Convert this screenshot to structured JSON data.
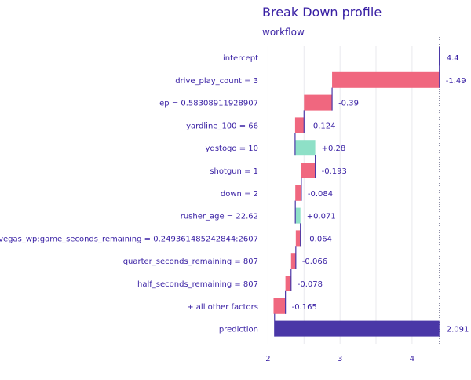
{
  "chart_data": {
    "type": "bar",
    "subtype": "waterfall",
    "title": "Break Down profile",
    "subtitle": "workflow",
    "xlim": [
      1.93,
      4.47
    ],
    "x_ticks": [
      2,
      3,
      4
    ],
    "x_tick_labels": [
      "2",
      "3",
      "4"
    ],
    "grid": true,
    "colors": {
      "negative": "#f0677f",
      "positive": "#8ee0c7",
      "baseline": "#4a37a7",
      "text": "#371ea3",
      "grid": "#e9e9ee"
    },
    "rows": [
      {
        "label": "intercept",
        "kind": "baseline",
        "start": 4.38,
        "end": 4.38,
        "value_label": "4.4"
      },
      {
        "label": "drive_play_count = 3",
        "kind": "negative",
        "start": 4.38,
        "end": 2.89,
        "value_label": "-1.49"
      },
      {
        "label": "ep = 0.58308911928907",
        "kind": "negative",
        "start": 2.89,
        "end": 2.5,
        "value_label": "-0.39"
      },
      {
        "label": "yardline_100 = 66",
        "kind": "negative",
        "start": 2.5,
        "end": 2.376,
        "value_label": "-0.124"
      },
      {
        "label": "ydstogo = 10",
        "kind": "positive",
        "start": 2.376,
        "end": 2.656,
        "value_label": "+0.28"
      },
      {
        "label": "shotgun = 1",
        "kind": "negative",
        "start": 2.656,
        "end": 2.463,
        "value_label": "-0.193"
      },
      {
        "label": "down = 2",
        "kind": "negative",
        "start": 2.463,
        "end": 2.379,
        "value_label": "-0.084"
      },
      {
        "label": "rusher_age = 22.62",
        "kind": "positive",
        "start": 2.379,
        "end": 2.45,
        "value_label": "+0.071"
      },
      {
        "label": "vegas_wp:game_seconds_remaining = 0.249361485242844:2607",
        "kind": "negative",
        "start": 2.45,
        "end": 2.386,
        "value_label": "-0.064"
      },
      {
        "label": "quarter_seconds_remaining = 807",
        "kind": "negative",
        "start": 2.386,
        "end": 2.32,
        "value_label": "-0.066"
      },
      {
        "label": "half_seconds_remaining = 807",
        "kind": "negative",
        "start": 2.32,
        "end": 2.242,
        "value_label": "-0.078"
      },
      {
        "label": "+ all other factors",
        "kind": "negative",
        "start": 2.242,
        "end": 2.077,
        "value_label": "-0.165"
      },
      {
        "label": "prediction",
        "kind": "prediction",
        "start": 2.091,
        "end": 4.38,
        "value_label": "2.091"
      }
    ]
  }
}
